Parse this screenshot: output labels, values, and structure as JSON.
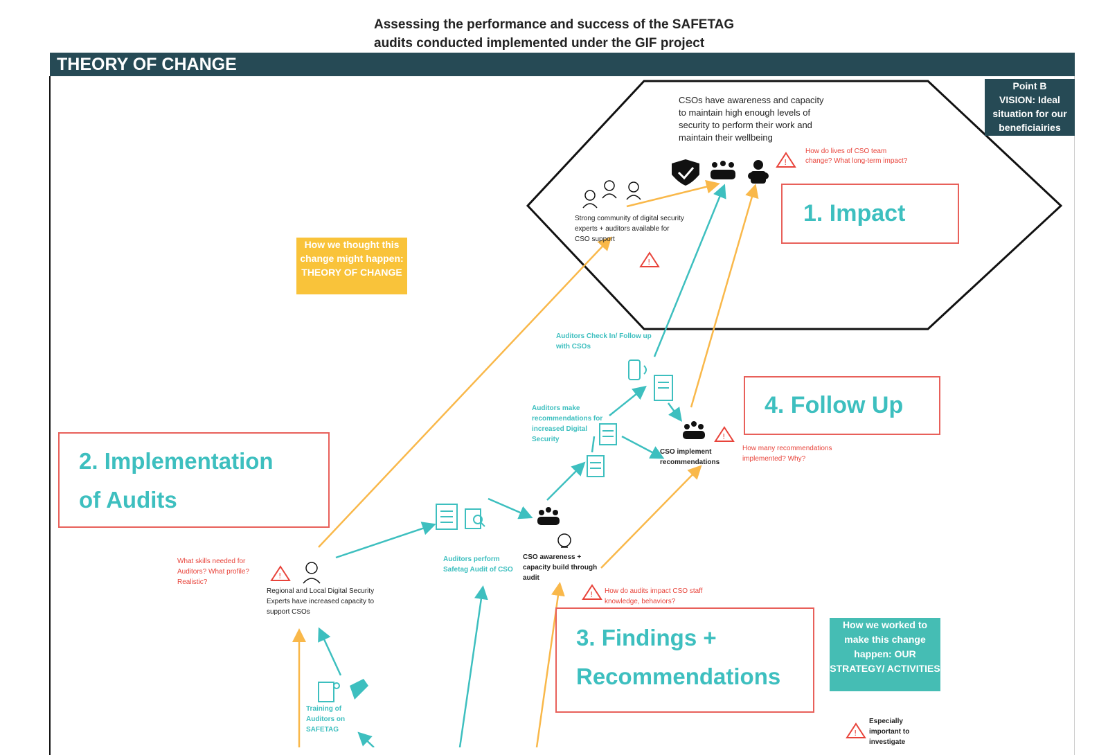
{
  "title_line1": "Assessing the performance and success of the SAFETAG",
  "title_line2": "audits conducted implemented under the GIF project",
  "toc_label": "THEORY OF CHANGE",
  "vision": {
    "line1": "Point B",
    "line2": "VISION: Ideal",
    "line3": "situation for our",
    "line4": "beneficiairies"
  },
  "impact_text": "CSOs have awareness and capacity to maintain high enough levels of security to perform their work and maintain their wellbeing",
  "impact_question": "How do lives of CSO team change? What long-term impact?",
  "community_text": "Strong community of digital security experts + auditors available for CSO support",
  "label_impact": "1.   Impact",
  "label_implementation_1": "2. Implementation",
  "label_implementation_2": "of Audits",
  "label_findings_1": "3. Findings +",
  "label_findings_2": "Recommendations",
  "label_followup": "4. Follow Up",
  "yellow_box": "How we thought this change might happen: THEORY OF CHANGE",
  "teal_box": "How we worked to make this change happen: OUR STRATEGY/ ACTIVITIES",
  "checkin": "Auditors Check In/ Follow up with CSOs",
  "recommend": "Auditors make recommendations for increased Digital Security",
  "implement": "CSO implement recommendations",
  "implement_question": "How many recommendations implemented? Why?",
  "audit_perform": "Auditors perform Safetag Audit of CSO",
  "awareness": "CSO awareness + capacity build through audit",
  "awareness_question": "How do audits impact CSO staff knowledge, behaviors?",
  "skills_question": "What skills needed for Auditors? What profile? Realistic?",
  "regional": "Regional and Local Digital Security Experts have increased capacity to support CSOs",
  "training": "Training of Auditors on SAFETAG",
  "legend": "Especially important to investigate",
  "colors": {
    "teal": "#3dbfbf",
    "orange": "#f9b84a",
    "red": "#e8433a",
    "navy": "#264a55"
  }
}
